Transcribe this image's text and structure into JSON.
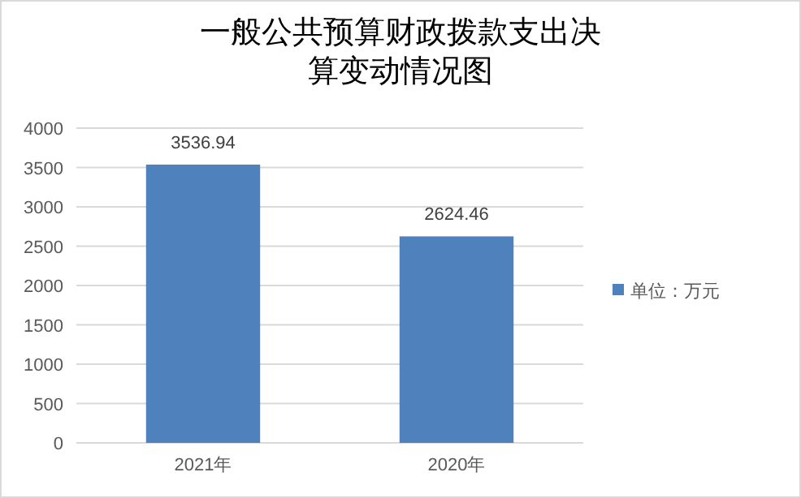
{
  "chart_data": {
    "type": "bar",
    "title": "一般公共预算财政拨款支出决算变动情况图",
    "categories": [
      "2021年",
      "2020年"
    ],
    "series": [
      {
        "name": "单位：万元",
        "color": "#4f81bd",
        "values": [
          3536.94,
          2624.46
        ]
      }
    ],
    "ylim": [
      0,
      4000
    ],
    "yticks": [
      0,
      500,
      1000,
      1500,
      2000,
      2500,
      3000,
      3500,
      4000
    ],
    "grid": "y",
    "legend": "right",
    "data_labels": true
  }
}
